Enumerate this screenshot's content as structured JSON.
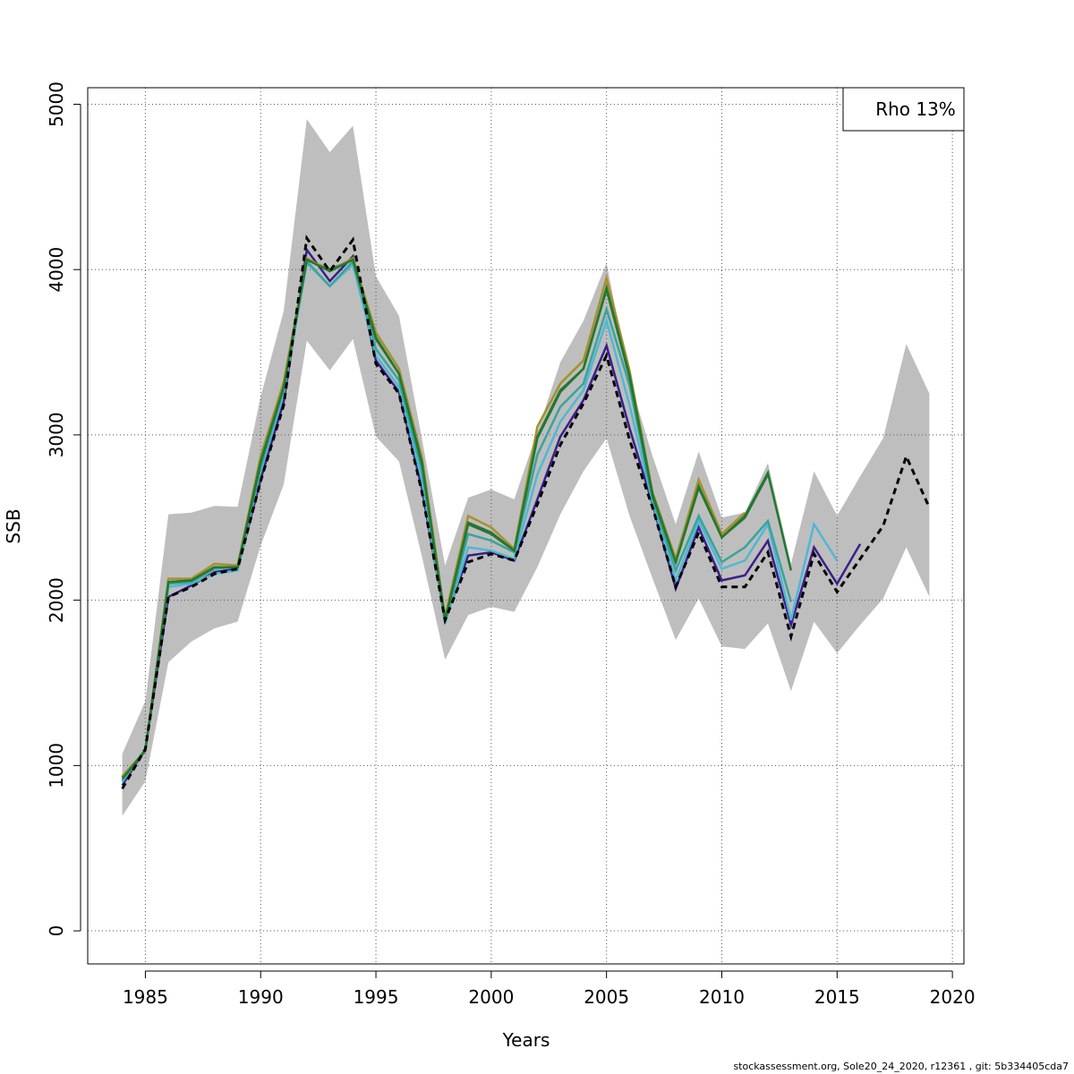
{
  "chart_data": {
    "type": "line",
    "xlabel": "Years",
    "ylabel": "SSB",
    "xlim": [
      1982.5,
      2020.5
    ],
    "ylim": [
      -200,
      5100
    ],
    "x_ticks": [
      1985,
      1990,
      1995,
      2000,
      2005,
      2010,
      2015,
      2020
    ],
    "y_ticks": [
      0,
      1000,
      2000,
      3000,
      4000,
      5000
    ],
    "grid": true,
    "legend": {
      "text": "Rho 13%",
      "position": "top-right"
    },
    "confidence_band": {
      "x": [
        1984,
        1985,
        1986,
        1987,
        1988,
        1989,
        1990,
        1991,
        1992,
        1993,
        1994,
        1995,
        1996,
        1997,
        1998,
        1999,
        2000,
        2001,
        2002,
        2003,
        2004,
        2005,
        2006,
        2007,
        2008,
        2009,
        2010,
        2011,
        2012,
        2013,
        2014,
        2015,
        2016,
        2017,
        2018,
        2019
      ],
      "upper": [
        1070,
        1390,
        2520,
        2530,
        2570,
        2565,
        3230,
        3750,
        4910,
        4710,
        4870,
        3960,
        3720,
        2970,
        2210,
        2620,
        2670,
        2610,
        3020,
        3440,
        3690,
        4040,
        3330,
        2870,
        2460,
        2900,
        2500,
        2530,
        2830,
        2220,
        2780,
        2510,
        2750,
        2980,
        3550,
        3250
      ],
      "lower": [
        695,
        905,
        1625,
        1750,
        1830,
        1870,
        2330,
        2700,
        3570,
        3390,
        3580,
        2990,
        2840,
        2260,
        1640,
        1910,
        1960,
        1930,
        2200,
        2520,
        2780,
        2980,
        2510,
        2130,
        1760,
        2010,
        1720,
        1705,
        1860,
        1450,
        1870,
        1680,
        1850,
        2010,
        2320,
        2020
      ],
      "color": "#bebebe"
    },
    "series": [
      {
        "color": "#000000",
        "dashed": true,
        "x": [
          1984,
          1985,
          1986,
          1987,
          1988,
          1989,
          1990,
          1991,
          1992,
          1993,
          1994,
          1995,
          1996,
          1997,
          1998,
          1999,
          2000,
          2001,
          2002,
          2003,
          2004,
          2005,
          2006,
          2007,
          2008,
          2009,
          2010,
          2011,
          2012,
          2013,
          2014,
          2015,
          2016,
          2017,
          2018,
          2019
        ],
        "values": [
          860,
          1100,
          2020,
          2080,
          2160,
          2190,
          2720,
          3180,
          4190,
          3990,
          4180,
          3430,
          3250,
          2650,
          1880,
          2230,
          2280,
          2240,
          2580,
          2940,
          3190,
          3480,
          2970,
          2560,
          2080,
          2410,
          2080,
          2080,
          2290,
          1780,
          2280,
          2050,
          2250,
          2450,
          2870,
          2560
        ]
      },
      {
        "color": "#3b1f8a",
        "x": [
          1984,
          1985,
          1986,
          1987,
          1988,
          1989,
          1990,
          1991,
          1992,
          1993,
          1994,
          1995,
          1996,
          1997,
          1998,
          1999,
          2000,
          2001,
          2002,
          2003,
          2004,
          2005,
          2006,
          2007,
          2008,
          2009,
          2010,
          2011,
          2012,
          2013,
          2014,
          2015,
          2016
        ],
        "values": [
          880,
          1100,
          2020,
          2090,
          2170,
          2190,
          2730,
          3200,
          4120,
          3930,
          4080,
          3450,
          3260,
          2670,
          1880,
          2270,
          2290,
          2240,
          2610,
          2990,
          3210,
          3540,
          3040,
          2580,
          2070,
          2440,
          2120,
          2150,
          2360,
          1850,
          2320,
          2100,
          2340
        ]
      },
      {
        "color": "#4fb8d4",
        "x": [
          1984,
          1985,
          1986,
          1987,
          1988,
          1989,
          1990,
          1991,
          1992,
          1993,
          1994,
          1995,
          1996,
          1997,
          1998,
          1999,
          2000,
          2001,
          2002,
          2003,
          2004,
          2005,
          2006,
          2007,
          2008,
          2009,
          2010,
          2011,
          2012,
          2013,
          2014,
          2015
        ],
        "values": [
          900,
          1100,
          2080,
          2100,
          2160,
          2180,
          2780,
          3250,
          4040,
          3900,
          4030,
          3480,
          3290,
          2720,
          1860,
          2320,
          2300,
          2250,
          2760,
          3080,
          3270,
          3690,
          3180,
          2590,
          2120,
          2480,
          2190,
          2240,
          2460,
          1880,
          2460,
          2240
        ]
      },
      {
        "color": "#3aa49a",
        "x": [
          1984,
          1985,
          1986,
          1987,
          1988,
          1989,
          1990,
          1991,
          1992,
          1993,
          1994,
          1995,
          1996,
          1997,
          1998,
          1999,
          2000,
          2001,
          2002,
          2003,
          2004,
          2005,
          2006,
          2007,
          2008,
          2009,
          2010,
          2011,
          2012,
          2013
        ],
        "values": [
          910,
          1100,
          2100,
          2110,
          2190,
          2200,
          2800,
          3280,
          4050,
          3900,
          4050,
          3520,
          3330,
          2780,
          1870,
          2400,
          2360,
          2290,
          2880,
          3170,
          3310,
          3760,
          3300,
          2610,
          2180,
          2510,
          2230,
          2320,
          2480,
          1990
        ]
      },
      {
        "color": "#2e6e3e",
        "x": [
          1984,
          1985,
          1986,
          1987,
          1988,
          1989,
          1990,
          1991,
          1992,
          1993,
          1994,
          1995,
          1996,
          1997,
          1998,
          1999,
          2000,
          2001,
          2002,
          2003,
          2004,
          2005,
          2006,
          2007,
          2008,
          2009,
          2010,
          2011,
          2012
        ],
        "values": [
          930,
          1090,
          2110,
          2120,
          2200,
          2200,
          2830,
          3290,
          4060,
          4000,
          4060,
          3580,
          3370,
          2820,
          1880,
          2460,
          2400,
          2300,
          2980,
          3260,
          3400,
          3880,
          3350,
          2630,
          2230,
          2680,
          2380,
          2500,
          2760
        ]
      },
      {
        "color": "#a88f2e",
        "x": [
          1984,
          1985,
          1986,
          1987,
          1988,
          1989,
          1990,
          1991,
          1992,
          1993,
          1994,
          1995,
          1996,
          1997,
          1998,
          1999,
          2000,
          2001,
          2002,
          2003,
          2004,
          2005,
          2006,
          2007,
          2008,
          2009,
          2010,
          2011
        ],
        "values": [
          935,
          1090,
          2130,
          2130,
          2220,
          2210,
          2870,
          3320,
          4070,
          3990,
          4070,
          3620,
          3400,
          2860,
          1900,
          2510,
          2440,
          2310,
          3050,
          3310,
          3450,
          3950,
          3390,
          2650,
          2250,
          2730,
          2400,
          2530
        ]
      },
      {
        "color": "#1f7a2e",
        "x": [
          1984,
          1985,
          1986,
          1987,
          1988,
          1989,
          1990,
          1991,
          1992,
          1993,
          1994,
          1995,
          1996,
          1997,
          1998,
          1999,
          2000,
          2001,
          2002,
          2003,
          2004,
          2005,
          2006,
          2007,
          2008,
          2009,
          2010,
          2011,
          2012,
          2013
        ],
        "values": [
          920,
          1090,
          2110,
          2120,
          2200,
          2200,
          2840,
          3290,
          4060,
          3990,
          4060,
          3590,
          3370,
          2830,
          1880,
          2470,
          2410,
          2300,
          2990,
          3270,
          3400,
          3890,
          3360,
          2640,
          2230,
          2690,
          2380,
          2510,
          2770,
          2180
        ]
      }
    ]
  },
  "footer_text": "stockassessment.org, Sole20_24_2020, r12361 , git: 5b334405cda7"
}
